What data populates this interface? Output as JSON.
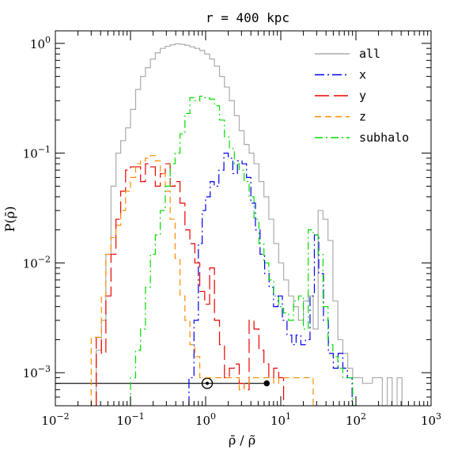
{
  "chart_data": {
    "type": "line",
    "title": "r = 400 kpc",
    "xlabel": "ρ̄ / ρ̃",
    "ylabel": "P(ρ̄)",
    "xscale": "log",
    "yscale": "log",
    "xlim": [
      0.01,
      1000
    ],
    "ylim": [
      0.0005,
      1.3
    ],
    "x_ticks": [
      {
        "value": 0.01,
        "base": "10",
        "exp": "−2"
      },
      {
        "value": 0.1,
        "base": "10",
        "exp": "−1"
      },
      {
        "value": 1,
        "base": "10",
        "exp": "0"
      },
      {
        "value": 10,
        "base": "10",
        "exp": "1"
      },
      {
        "value": 100,
        "base": "10",
        "exp": "2"
      },
      {
        "value": 1000,
        "base": "10",
        "exp": "3"
      }
    ],
    "y_ticks": [
      {
        "value": 0.001,
        "base": "10",
        "exp": "−3"
      },
      {
        "value": 0.01,
        "base": "10",
        "exp": "−2"
      },
      {
        "value": 0.1,
        "base": "10",
        "exp": "−1"
      },
      {
        "value": 1,
        "base": "10",
        "exp": "0"
      }
    ],
    "legend_position": "top-right",
    "series": [
      {
        "name": "all",
        "color": "#aaaaaa",
        "dash": "none",
        "edges": [
          0.03,
          0.035,
          0.041,
          0.047,
          0.055,
          0.064,
          0.074,
          0.086,
          0.1,
          0.117,
          0.136,
          0.158,
          0.184,
          0.214,
          0.249,
          0.29,
          0.337,
          0.392,
          0.456,
          0.53,
          0.617,
          0.718,
          0.835,
          0.971,
          1.13,
          1.31,
          1.53,
          1.78,
          2.07,
          2.41,
          2.8,
          3.25,
          3.79,
          4.4,
          5.12,
          5.96,
          6.93,
          8.06,
          9.38,
          10.9,
          12.7,
          14.8,
          17.2,
          20,
          23.2,
          27,
          31.4,
          36.5,
          42.5,
          49.4,
          57.5,
          66.9,
          77.8,
          90.5,
          105.3,
          122.5,
          142.5,
          165.8,
          192.9,
          224.4,
          261.1,
          303.7,
          353.3,
          411
        ],
        "values": [
          0.0005,
          0.0016,
          0.003,
          0.012,
          0.05,
          0.1,
          0.13,
          0.17,
          0.25,
          0.38,
          0.5,
          0.6,
          0.72,
          0.82,
          0.9,
          0.94,
          0.97,
          0.99,
          0.98,
          0.96,
          0.93,
          0.9,
          0.86,
          0.8,
          0.72,
          0.62,
          0.5,
          0.4,
          0.3,
          0.22,
          0.16,
          0.12,
          0.1,
          0.08,
          0.055,
          0.04,
          0.025,
          0.015,
          0.01,
          0.007,
          0.005,
          0.004,
          0.003,
          0.0045,
          0.005,
          0.0025,
          0.03,
          0.025,
          0.016,
          0.0045,
          0.002,
          0.0015,
          0.0011,
          0.0009,
          0.0009,
          0.0008,
          0.0008,
          0.0009,
          0.0009,
          0.0005,
          0.0009,
          0.0005,
          0.0009
        ]
      },
      {
        "name": "x",
        "color": "#0000ee",
        "dash": "12,4,2,4",
        "edges": [
          0.6,
          0.7,
          0.8,
          0.9,
          1.0,
          1.15,
          1.3,
          1.5,
          1.75,
          2.0,
          2.3,
          2.65,
          3.05,
          3.5,
          4.0,
          4.6,
          5.3,
          6.1,
          7.0,
          8.0,
          9.2,
          10.5,
          12.1,
          14,
          16,
          18.5,
          21.3,
          24.5,
          28,
          32,
          37,
          43,
          50,
          58,
          67,
          77,
          89,
          100
        ],
        "values": [
          0.0009,
          0.003,
          0.015,
          0.03,
          0.04,
          0.055,
          0.05,
          0.07,
          0.1,
          0.09,
          0.065,
          0.085,
          0.08,
          0.06,
          0.035,
          0.02,
          0.012,
          0.008,
          0.006,
          0.004,
          0.005,
          0.003,
          0.0022,
          0.0018,
          0.0022,
          0.0018,
          0.002,
          0.005,
          0.018,
          0.008,
          0.003,
          0.0015,
          0.0011,
          0.0015,
          0.0011,
          0.0009,
          0.0005
        ]
      },
      {
        "name": "y",
        "color": "#ee0000",
        "dash": "18,6",
        "edges": [
          0.035,
          0.041,
          0.047,
          0.055,
          0.064,
          0.074,
          0.086,
          0.1,
          0.117,
          0.136,
          0.158,
          0.184,
          0.214,
          0.249,
          0.29,
          0.337,
          0.392,
          0.456,
          0.53,
          0.617,
          0.718,
          0.835,
          0.971,
          1.13,
          1.31,
          1.53,
          1.78,
          2.07,
          2.41,
          2.8,
          3.25,
          3.79,
          4.4,
          5.12,
          5.96,
          6.93,
          8.06,
          9.38,
          10.9
        ],
        "values": [
          0.0021,
          0.0015,
          0.005,
          0.012,
          0.025,
          0.045,
          0.07,
          0.075,
          0.075,
          0.055,
          0.08,
          0.075,
          0.05,
          0.065,
          0.08,
          0.05,
          0.055,
          0.035,
          0.02,
          0.015,
          0.01,
          0.0055,
          0.0042,
          0.009,
          0.003,
          0.0018,
          0.0009,
          0.0011,
          0.0012,
          0.0008,
          0.0007,
          0.003,
          0.0025,
          0.0016,
          0.0012,
          0.0009,
          0.0011,
          0.0009
        ]
      },
      {
        "name": "z",
        "color": "#ff8c00",
        "dash": "8,5",
        "edges": [
          0.03,
          0.035,
          0.041,
          0.047,
          0.055,
          0.064,
          0.074,
          0.086,
          0.1,
          0.117,
          0.136,
          0.158,
          0.184,
          0.214,
          0.249,
          0.29,
          0.337,
          0.392,
          0.456,
          0.53,
          0.617,
          0.718,
          0.835,
          0.971,
          1.13,
          1.31,
          1.53,
          1.78,
          2.07,
          2.41,
          2.8,
          3.25,
          3.79,
          4.4,
          5.12,
          5.96,
          6.93,
          8.06,
          9.38,
          10.9,
          12.7,
          14.8,
          17.2,
          20,
          23.2,
          27
        ],
        "values": [
          0.0021,
          0.0021,
          0.005,
          0.012,
          0.017,
          0.022,
          0.03,
          0.045,
          0.06,
          0.08,
          0.085,
          0.09,
          0.095,
          0.085,
          0.065,
          0.045,
          0.025,
          0.011,
          0.005,
          0.003,
          0.0018,
          0.0014,
          0.0009,
          0.0009,
          0.0009,
          0.0009,
          0.0009,
          0.0009,
          0.0009,
          0.0009,
          0.0007,
          0.0008,
          0.0009,
          0.0009,
          0.0009,
          0.0009,
          0.0009,
          0.0008,
          0.0009,
          0.0009,
          0.0009,
          0.0009,
          0.0009,
          0.0009,
          0.0009
        ]
      },
      {
        "name": "subhalo",
        "color": "#00dd00",
        "dash": "10,4,2,4",
        "edges": [
          0.1,
          0.117,
          0.136,
          0.158,
          0.184,
          0.214,
          0.249,
          0.29,
          0.337,
          0.392,
          0.456,
          0.53,
          0.617,
          0.718,
          0.835,
          0.971,
          1.13,
          1.31,
          1.53,
          1.78,
          2.07,
          2.41,
          2.8,
          3.25,
          3.79,
          4.4,
          5.12,
          5.96,
          6.93,
          8.06,
          9.38,
          10.9,
          12.7,
          14.8,
          17.2,
          20,
          23.2,
          27,
          31.4,
          36.5,
          42.5,
          49.4,
          57.5,
          66.9,
          77.8,
          90.5,
          105.3
        ],
        "values": [
          0.0009,
          0.0016,
          0.0025,
          0.006,
          0.012,
          0.018,
          0.03,
          0.05,
          0.08,
          0.1,
          0.15,
          0.23,
          0.32,
          0.3,
          0.33,
          0.32,
          0.31,
          0.27,
          0.2,
          0.14,
          0.11,
          0.08,
          0.07,
          0.055,
          0.04,
          0.025,
          0.015,
          0.01,
          0.007,
          0.005,
          0.004,
          0.0035,
          0.003,
          0.0045,
          0.005,
          0.0025,
          0.02,
          0.018,
          0.012,
          0.004,
          0.0018,
          0.0014,
          0.0011,
          0.0009,
          0.0009,
          0.0005
        ]
      }
    ],
    "reference_line": {
      "y": 0.0008,
      "x_start": 0.01,
      "x_end": 6.5
    },
    "markers": [
      {
        "kind": "open-circle",
        "x": 1.05,
        "y": 0.0008
      },
      {
        "kind": "filled-dot",
        "x": 6.5,
        "y": 0.0008
      }
    ]
  }
}
